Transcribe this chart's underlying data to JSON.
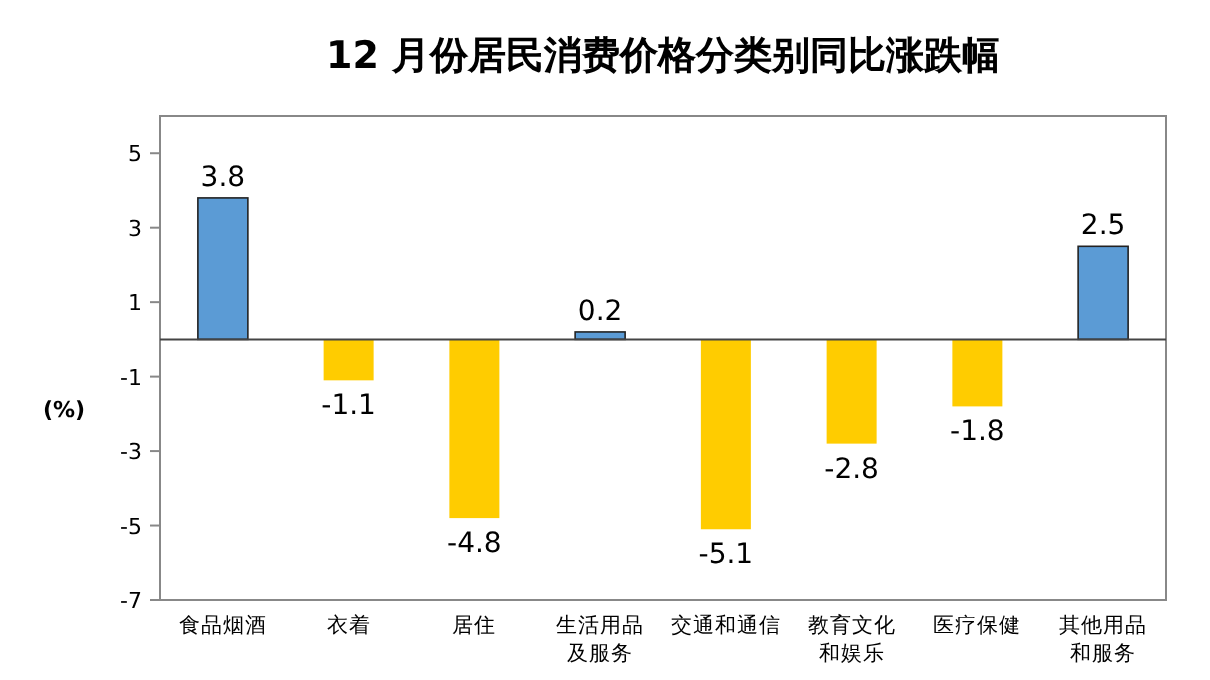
{
  "chart_data": {
    "type": "bar",
    "title": "12 月份居民消费价格分类别同比涨跌幅",
    "ylabel": "(%)",
    "categories": [
      "食品烟酒",
      "衣着",
      "居住",
      "生活用品及服务",
      "交通和通信",
      "教育文化和娱乐",
      "医疗保健",
      "其他用品和服务"
    ],
    "values": [
      3.8,
      -1.1,
      -4.8,
      0.2,
      -5.1,
      -2.8,
      -1.8,
      2.5
    ],
    "colors": [
      "#5b9bd5",
      "#ffcc00",
      "#ffcc00",
      "#5b9bd5",
      "#ffcc00",
      "#ffcc00",
      "#ffcc00",
      "#5b9bd5"
    ],
    "ylim": [
      -7,
      6
    ],
    "yticks": [
      -7,
      -5,
      -3,
      -1,
      1,
      3,
      5
    ],
    "data_labels": true
  }
}
